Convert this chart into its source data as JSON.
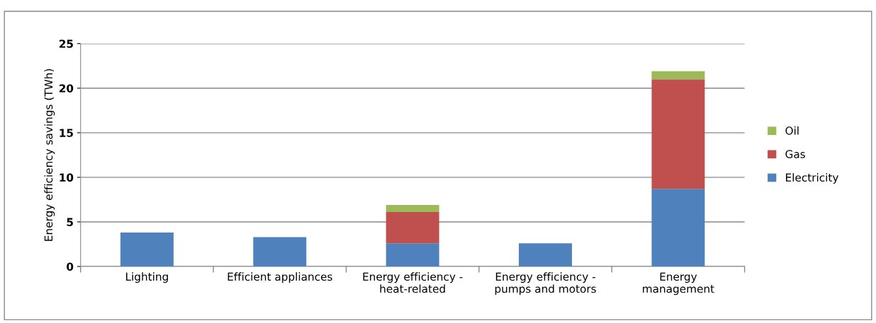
{
  "chart_data": {
    "type": "bar",
    "stacked": true,
    "ylabel": "Energy efficiency savings (TWh)",
    "categories": [
      "Lighting",
      "Efficient appliances",
      "Energy efficiency -\nheat-related",
      "Energy efficiency -\npumps and motors",
      "Energy\nmanagement"
    ],
    "series": [
      {
        "name": "Electricity",
        "color": "#4f81bd",
        "values": [
          3.8,
          3.3,
          2.6,
          2.6,
          8.7
        ]
      },
      {
        "name": "Gas",
        "color": "#c0504d",
        "values": [
          null,
          null,
          3.5,
          null,
          12.3
        ]
      },
      {
        "name": "Oil",
        "color": "#9bbb59",
        "values": [
          null,
          null,
          0.8,
          null,
          0.9
        ]
      }
    ],
    "ylim": [
      0,
      25
    ],
    "yticks": [
      0,
      5,
      10,
      15,
      20,
      25
    ],
    "grid": "y",
    "legend": "right"
  }
}
